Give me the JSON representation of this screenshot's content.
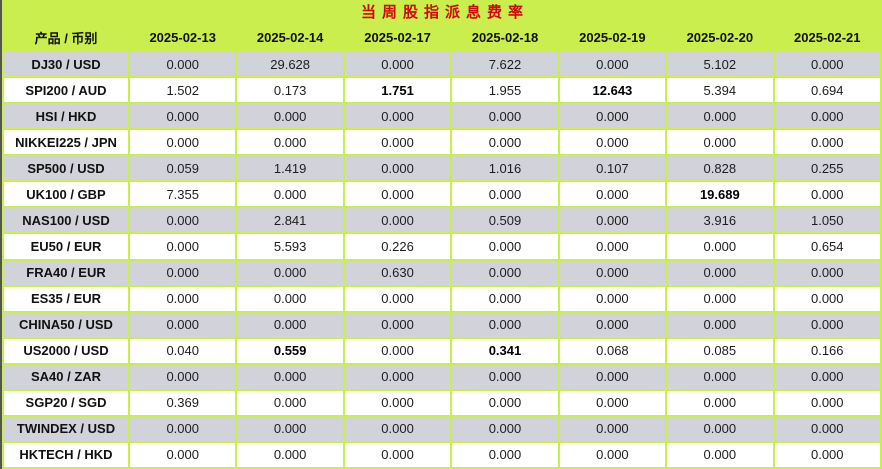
{
  "title": "当周股指派息费率",
  "colors": {
    "header_bg": "#c9ee4e",
    "alt_row_bg": "#d2d2db",
    "row_bg": "#ffffff",
    "title_color": "#cf0a0a",
    "grid_color": "#c9ee4e",
    "left_edge": "#555555"
  },
  "table": {
    "product_header": "产品 / 币别",
    "date_headers": [
      "2025-02-13",
      "2025-02-14",
      "2025-02-17",
      "2025-02-18",
      "2025-02-19",
      "2025-02-20",
      "2025-02-21"
    ],
    "rows": [
      {
        "product": "DJ30 / USD",
        "values": [
          "0.000",
          "29.628",
          "0.000",
          "7.622",
          "0.000",
          "5.102",
          "0.000"
        ],
        "bold": []
      },
      {
        "product": "SPI200 / AUD",
        "values": [
          "1.502",
          "0.173",
          "1.751",
          "1.955",
          "12.643",
          "5.394",
          "0.694"
        ],
        "bold": [
          2,
          4
        ]
      },
      {
        "product": "HSI / HKD",
        "values": [
          "0.000",
          "0.000",
          "0.000",
          "0.000",
          "0.000",
          "0.000",
          "0.000"
        ],
        "bold": []
      },
      {
        "product": "NIKKEI225 / JPN",
        "values": [
          "0.000",
          "0.000",
          "0.000",
          "0.000",
          "0.000",
          "0.000",
          "0.000"
        ],
        "bold": []
      },
      {
        "product": "SP500 / USD",
        "values": [
          "0.059",
          "1.419",
          "0.000",
          "1.016",
          "0.107",
          "0.828",
          "0.255"
        ],
        "bold": []
      },
      {
        "product": "UK100 / GBP",
        "values": [
          "7.355",
          "0.000",
          "0.000",
          "0.000",
          "0.000",
          "19.689",
          "0.000"
        ],
        "bold": [
          5
        ]
      },
      {
        "product": "NAS100 / USD",
        "values": [
          "0.000",
          "2.841",
          "0.000",
          "0.509",
          "0.000",
          "3.916",
          "1.050"
        ],
        "bold": []
      },
      {
        "product": "EU50 / EUR",
        "values": [
          "0.000",
          "5.593",
          "0.226",
          "0.000",
          "0.000",
          "0.000",
          "0.654"
        ],
        "bold": []
      },
      {
        "product": "FRA40 / EUR",
        "values": [
          "0.000",
          "0.000",
          "0.630",
          "0.000",
          "0.000",
          "0.000",
          "0.000"
        ],
        "bold": []
      },
      {
        "product": "ES35 / EUR",
        "values": [
          "0.000",
          "0.000",
          "0.000",
          "0.000",
          "0.000",
          "0.000",
          "0.000"
        ],
        "bold": []
      },
      {
        "product": "CHINA50 / USD",
        "values": [
          "0.000",
          "0.000",
          "0.000",
          "0.000",
          "0.000",
          "0.000",
          "0.000"
        ],
        "bold": []
      },
      {
        "product": "US2000 / USD",
        "values": [
          "0.040",
          "0.559",
          "0.000",
          "0.341",
          "0.068",
          "0.085",
          "0.166"
        ],
        "bold": [
          1,
          3
        ]
      },
      {
        "product": "SA40 / ZAR",
        "values": [
          "0.000",
          "0.000",
          "0.000",
          "0.000",
          "0.000",
          "0.000",
          "0.000"
        ],
        "bold": []
      },
      {
        "product": "SGP20 / SGD",
        "values": [
          "0.369",
          "0.000",
          "0.000",
          "0.000",
          "0.000",
          "0.000",
          "0.000"
        ],
        "bold": []
      },
      {
        "product": "TWINDEX / USD",
        "values": [
          "0.000",
          "0.000",
          "0.000",
          "0.000",
          "0.000",
          "0.000",
          "0.000"
        ],
        "bold": []
      },
      {
        "product": "HKTECH / HKD",
        "values": [
          "0.000",
          "0.000",
          "0.000",
          "0.000",
          "0.000",
          "0.000",
          "0.000"
        ],
        "bold": []
      }
    ]
  }
}
